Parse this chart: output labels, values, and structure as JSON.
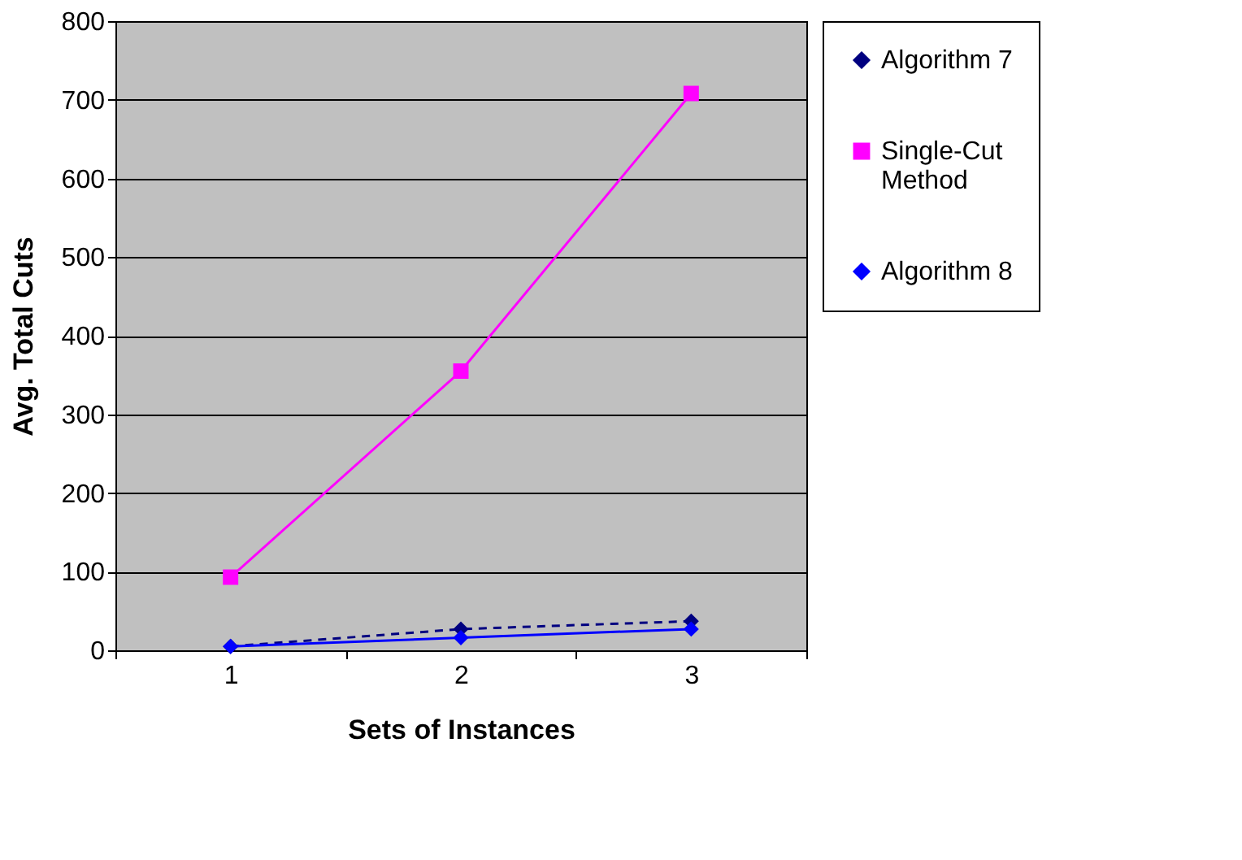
{
  "chart_data": {
    "type": "line",
    "xlabel": "Sets of Instances",
    "ylabel": "Avg. Total Cuts",
    "categories": [
      "1",
      "2",
      "3"
    ],
    "series": [
      {
        "name": "Algorithm 7",
        "color": "#000080",
        "values": [
          5,
          27,
          37
        ],
        "line_style": "dashed",
        "marker": "diamond"
      },
      {
        "name": "Single-Cut Method",
        "color": "#ff00ff",
        "values": [
          93,
          355,
          708
        ],
        "line_style": "solid",
        "marker": "square"
      },
      {
        "name": "Algorithm 8",
        "color": "#0000ff",
        "values": [
          5,
          16,
          27
        ],
        "line_style": "solid",
        "marker": "diamond"
      }
    ],
    "ylim": [
      0,
      800
    ],
    "yticks": [
      0,
      100,
      200,
      300,
      400,
      500,
      600,
      700,
      800
    ],
    "grid": "y",
    "legend": "right"
  }
}
